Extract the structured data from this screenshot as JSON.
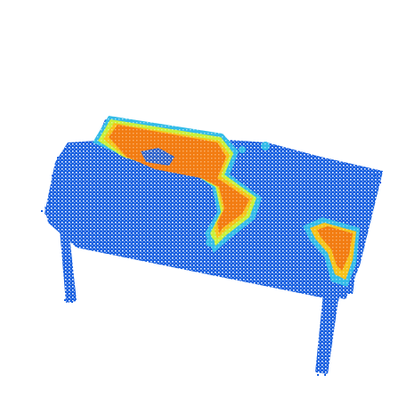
{
  "image": {
    "subject": "point-cloud-table",
    "background_color": "#ffffff",
    "colormap": {
      "low": "#1259e6",
      "mid_low": "#33bbe8",
      "mid": "#c9f03a",
      "mid_high": "#f5c21a",
      "high": "#f27c12"
    }
  }
}
